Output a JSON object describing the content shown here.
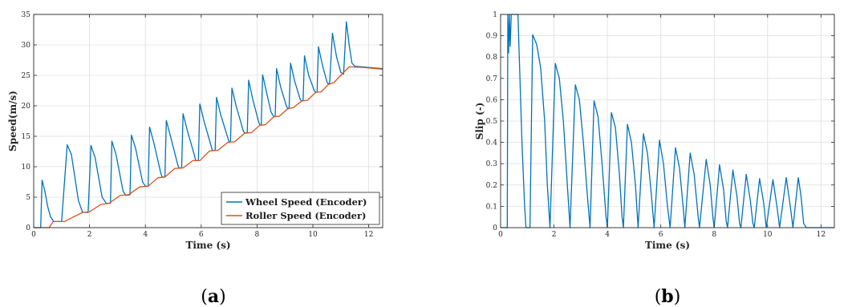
{
  "chart_data": [
    {
      "type": "line",
      "panel_label": {
        "open": "(",
        "letter": "a",
        "close": ")"
      },
      "xlabel": "Time (s)",
      "ylabel": "Speed(m/s)",
      "xlim": [
        0,
        12.5
      ],
      "ylim": [
        0,
        35
      ],
      "xticks": [
        0,
        2,
        4,
        6,
        8,
        10,
        12
      ],
      "yticks": [
        0,
        5,
        10,
        15,
        20,
        25,
        30,
        35
      ],
      "grid": true,
      "legend_position": "bottom-right",
      "series": [
        {
          "name": "Wheel Speed (Encoder)",
          "color": "#0072BD",
          "points": [
            [
              0,
              0
            ],
            [
              0.25,
              0
            ],
            [
              0.3,
              7.8
            ],
            [
              0.4,
              6.0
            ],
            [
              0.5,
              3.5
            ],
            [
              0.6,
              1.8
            ],
            [
              0.72,
              1.0
            ],
            [
              1.0,
              1.0
            ],
            [
              1.2,
              13.6
            ],
            [
              1.35,
              12.0
            ],
            [
              1.6,
              4.5
            ],
            [
              1.75,
              2.5
            ],
            [
              1.95,
              2.5
            ],
            [
              2.05,
              13.5
            ],
            [
              2.2,
              11.5
            ],
            [
              2.45,
              5.0
            ],
            [
              2.6,
              4.0
            ],
            [
              2.75,
              4.0
            ],
            [
              2.8,
              14.2
            ],
            [
              2.95,
              12.0
            ],
            [
              3.2,
              6.0
            ],
            [
              3.3,
              5.3
            ],
            [
              3.45,
              5.4
            ],
            [
              3.5,
              15.2
            ],
            [
              3.65,
              13.0
            ],
            [
              3.9,
              7.5
            ],
            [
              4.0,
              6.8
            ],
            [
              4.1,
              6.8
            ],
            [
              4.15,
              16.5
            ],
            [
              4.3,
              14.0
            ],
            [
              4.55,
              9.0
            ],
            [
              4.6,
              8.3
            ],
            [
              4.7,
              8.3
            ],
            [
              4.75,
              17.6
            ],
            [
              4.9,
              15.0
            ],
            [
              5.15,
              10.5
            ],
            [
              5.2,
              9.8
            ],
            [
              5.3,
              9.8
            ],
            [
              5.35,
              18.7
            ],
            [
              5.5,
              16.0
            ],
            [
              5.75,
              12.0
            ],
            [
              5.8,
              11.0
            ],
            [
              5.9,
              11.0
            ],
            [
              5.95,
              20.3
            ],
            [
              6.1,
              17.5
            ],
            [
              6.35,
              13.5
            ],
            [
              6.4,
              12.6
            ],
            [
              6.5,
              12.7
            ],
            [
              6.55,
              21.4
            ],
            [
              6.7,
              18.5
            ],
            [
              6.95,
              14.8
            ],
            [
              7.0,
              14.0
            ],
            [
              7.05,
              14.1
            ],
            [
              7.1,
              22.9
            ],
            [
              7.25,
              20.0
            ],
            [
              7.5,
              16.0
            ],
            [
              7.55,
              15.5
            ],
            [
              7.65,
              15.6
            ],
            [
              7.7,
              24.2
            ],
            [
              7.85,
              21.0
            ],
            [
              8.05,
              17.5
            ],
            [
              8.1,
              16.8
            ],
            [
              8.15,
              16.9
            ],
            [
              8.2,
              25.1
            ],
            [
              8.35,
              22.0
            ],
            [
              8.5,
              19.0
            ],
            [
              8.6,
              18.2
            ],
            [
              8.65,
              18.3
            ],
            [
              8.7,
              26.1
            ],
            [
              8.85,
              23.0
            ],
            [
              9.05,
              20.0
            ],
            [
              9.1,
              19.5
            ],
            [
              9.15,
              19.7
            ],
            [
              9.2,
              27.0
            ],
            [
              9.35,
              24.0
            ],
            [
              9.55,
              21.0
            ],
            [
              9.6,
              20.8
            ],
            [
              9.65,
              20.9
            ],
            [
              9.7,
              28.2
            ],
            [
              9.85,
              25.0
            ],
            [
              10.05,
              22.5
            ],
            [
              10.1,
              22.2
            ],
            [
              10.15,
              22.3
            ],
            [
              10.2,
              29.7
            ],
            [
              10.35,
              26.5
            ],
            [
              10.5,
              24.0
            ],
            [
              10.55,
              23.5
            ],
            [
              10.6,
              23.8
            ],
            [
              10.7,
              31.9
            ],
            [
              10.85,
              28.0
            ],
            [
              11.0,
              25.5
            ],
            [
              11.1,
              25.2
            ],
            [
              11.2,
              33.8
            ],
            [
              11.3,
              30.0
            ],
            [
              11.4,
              27.0
            ],
            [
              11.5,
              26.5
            ],
            [
              12.0,
              26.3
            ],
            [
              12.5,
              26.1
            ]
          ]
        },
        {
          "name": "Roller Speed (Encoder)",
          "color": "#D95319",
          "points": [
            [
              0,
              0
            ],
            [
              0.55,
              0
            ],
            [
              0.7,
              1.0
            ],
            [
              1.1,
              1.0
            ],
            [
              1.4,
              1.7
            ],
            [
              1.75,
              2.5
            ],
            [
              2.0,
              2.6
            ],
            [
              2.4,
              3.8
            ],
            [
              2.7,
              4.0
            ],
            [
              3.1,
              5.3
            ],
            [
              3.4,
              5.4
            ],
            [
              3.8,
              6.7
            ],
            [
              4.1,
              6.8
            ],
            [
              4.45,
              8.2
            ],
            [
              4.7,
              8.3
            ],
            [
              5.05,
              9.7
            ],
            [
              5.35,
              9.8
            ],
            [
              5.7,
              11.0
            ],
            [
              5.95,
              11.0
            ],
            [
              6.3,
              12.6
            ],
            [
              6.6,
              12.7
            ],
            [
              6.95,
              14.0
            ],
            [
              7.2,
              14.1
            ],
            [
              7.55,
              15.5
            ],
            [
              7.8,
              15.6
            ],
            [
              8.1,
              16.8
            ],
            [
              8.3,
              16.9
            ],
            [
              8.6,
              18.2
            ],
            [
              8.8,
              18.3
            ],
            [
              9.1,
              19.5
            ],
            [
              9.3,
              19.7
            ],
            [
              9.6,
              20.8
            ],
            [
              9.8,
              20.9
            ],
            [
              10.1,
              22.2
            ],
            [
              10.3,
              22.3
            ],
            [
              10.55,
              23.5
            ],
            [
              10.75,
              23.8
            ],
            [
              11.0,
              25.0
            ],
            [
              11.3,
              26.4
            ],
            [
              11.8,
              26.3
            ],
            [
              12.5,
              26.0
            ]
          ]
        }
      ]
    },
    {
      "type": "line",
      "panel_label": {
        "open": "(",
        "letter": "b",
        "close": ")"
      },
      "xlabel": "Time (s)",
      "ylabel": "Slip (-)",
      "xlim": [
        0,
        12.5
      ],
      "ylim": [
        0,
        1
      ],
      "xticks": [
        0,
        2,
        4,
        6,
        8,
        10,
        12
      ],
      "yticks": [
        0,
        0.1,
        0.2,
        0.3,
        0.4,
        0.5,
        0.6,
        0.7,
        0.8,
        0.9,
        1
      ],
      "grid": true,
      "series": [
        {
          "color": "#0072BD",
          "points": [
            [
              0,
              0
            ],
            [
              0.25,
              0
            ],
            [
              0.27,
              1.0
            ],
            [
              0.3,
              0.82
            ],
            [
              0.33,
              1.0
            ],
            [
              0.36,
              0.85
            ],
            [
              0.4,
              1.0
            ],
            [
              0.6,
              1.0
            ],
            [
              0.65,
              1.0
            ],
            [
              0.8,
              0.4
            ],
            [
              0.9,
              0.1
            ],
            [
              0.95,
              0
            ],
            [
              1.1,
              0
            ],
            [
              1.2,
              0.905
            ],
            [
              1.35,
              0.86
            ],
            [
              1.5,
              0.75
            ],
            [
              1.65,
              0.5
            ],
            [
              1.75,
              0.2
            ],
            [
              1.85,
              0
            ],
            [
              2.05,
              0.77
            ],
            [
              2.2,
              0.7
            ],
            [
              2.35,
              0.5
            ],
            [
              2.5,
              0.2
            ],
            [
              2.6,
              0
            ],
            [
              2.8,
              0.67
            ],
            [
              2.95,
              0.6
            ],
            [
              3.1,
              0.4
            ],
            [
              3.25,
              0.15
            ],
            [
              3.35,
              0
            ],
            [
              3.5,
              0.595
            ],
            [
              3.65,
              0.52
            ],
            [
              3.8,
              0.3
            ],
            [
              3.95,
              0.05
            ],
            [
              4.0,
              0
            ],
            [
              4.15,
              0.54
            ],
            [
              4.3,
              0.47
            ],
            [
              4.45,
              0.25
            ],
            [
              4.55,
              0.05
            ],
            [
              4.6,
              0
            ],
            [
              4.75,
              0.485
            ],
            [
              4.9,
              0.4
            ],
            [
              5.05,
              0.2
            ],
            [
              5.15,
              0
            ],
            [
              5.35,
              0.44
            ],
            [
              5.5,
              0.35
            ],
            [
              5.65,
              0.15
            ],
            [
              5.75,
              0
            ],
            [
              5.95,
              0.41
            ],
            [
              6.1,
              0.3
            ],
            [
              6.25,
              0.1
            ],
            [
              6.35,
              0
            ],
            [
              6.55,
              0.375
            ],
            [
              6.7,
              0.28
            ],
            [
              6.85,
              0.08
            ],
            [
              6.9,
              0
            ],
            [
              7.1,
              0.35
            ],
            [
              7.25,
              0.25
            ],
            [
              7.4,
              0.05
            ],
            [
              7.45,
              0
            ],
            [
              7.7,
              0.32
            ],
            [
              7.85,
              0.2
            ],
            [
              7.95,
              0.05
            ],
            [
              8.0,
              0
            ],
            [
              8.2,
              0.295
            ],
            [
              8.35,
              0.18
            ],
            [
              8.45,
              0.03
            ],
            [
              8.5,
              0
            ],
            [
              8.7,
              0.27
            ],
            [
              8.85,
              0.15
            ],
            [
              8.95,
              0.02
            ],
            [
              9.0,
              0
            ],
            [
              9.2,
              0.25
            ],
            [
              9.35,
              0.13
            ],
            [
              9.45,
              0.02
            ],
            [
              9.5,
              0
            ],
            [
              9.7,
              0.23
            ],
            [
              9.85,
              0.12
            ],
            [
              9.95,
              0
            ],
            [
              10.2,
              0.225
            ],
            [
              10.35,
              0.1
            ],
            [
              10.45,
              0
            ],
            [
              10.7,
              0.235
            ],
            [
              10.85,
              0.1
            ],
            [
              10.95,
              0
            ],
            [
              11.15,
              0.235
            ],
            [
              11.25,
              0.15
            ],
            [
              11.35,
              0.02
            ],
            [
              11.45,
              0
            ],
            [
              12.5,
              0
            ]
          ]
        }
      ]
    }
  ]
}
